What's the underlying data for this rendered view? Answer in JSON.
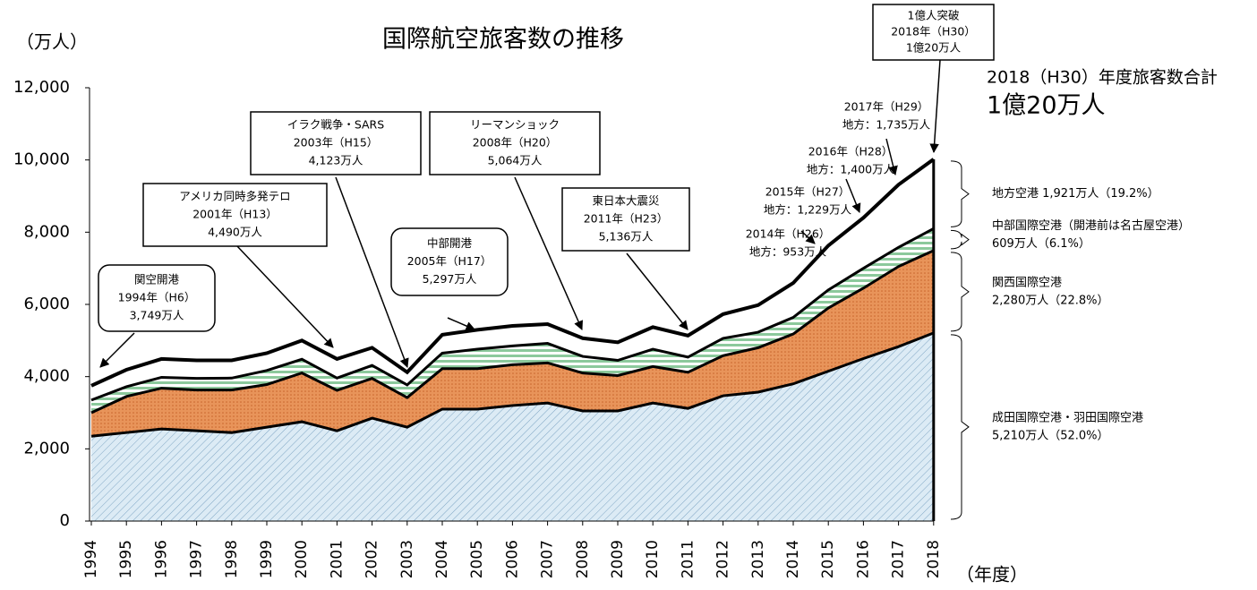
{
  "chart_data": {
    "type": "stacked_area",
    "title": "国際航空旅客数の推移",
    "y_unit": "（万人）",
    "x_label": "（年度）",
    "categories": [
      "1994",
      "1995",
      "1996",
      "1997",
      "1998",
      "1999",
      "2000",
      "2001",
      "2002",
      "2003",
      "2004",
      "2005",
      "2006",
      "2007",
      "2008",
      "2009",
      "2010",
      "2011",
      "2012",
      "2013",
      "2014",
      "2015",
      "2016",
      "2017",
      "2018"
    ],
    "series": [
      {
        "name": "成田国際空港・羽田国際空港",
        "color": "#dcebf5",
        "values": [
          2350,
          2450,
          2550,
          2500,
          2450,
          2600,
          2750,
          2500,
          2850,
          2600,
          3100,
          3100,
          3200,
          3270,
          3050,
          3050,
          3270,
          3120,
          3470,
          3570,
          3800,
          4150,
          4500,
          4830,
          5210
        ]
      },
      {
        "name": "関西国際空港",
        "color": "#e8945a",
        "values": [
          650,
          1000,
          1130,
          1130,
          1180,
          1180,
          1350,
          1120,
          1100,
          820,
          1120,
          1120,
          1130,
          1110,
          1050,
          980,
          1010,
          1000,
          1110,
          1230,
          1380,
          1750,
          1950,
          2220,
          2280
        ]
      },
      {
        "name": "中部国際空港（開港前は名古屋空港）",
        "color": "#dff0e3",
        "values": [
          350,
          270,
          300,
          320,
          330,
          390,
          380,
          340,
          360,
          350,
          430,
          540,
          520,
          540,
          460,
          420,
          480,
          420,
          480,
          430,
          460,
          500,
          550,
          530,
          609
        ]
      },
      {
        "name": "地方空港",
        "color": "#ffffff",
        "values": [
          399,
          470,
          510,
          500,
          490,
          480,
          520,
          530,
          490,
          353,
          510,
          537,
          555,
          535,
          504,
          500,
          610,
          596,
          670,
          750,
          953,
          1229,
          1400,
          1735,
          1921
        ]
      }
    ],
    "side_labels": [
      [
        "成田国際空港・羽田国際空港",
        "5,210万人（52.0%）"
      ],
      [
        "関西国際空港",
        "2,280万人（22.8%）"
      ],
      [
        "中部国際空港（開港前は名古屋空港）",
        "609万人（6.1%）"
      ],
      [
        "地方空港 1,921万人（19.2%）"
      ]
    ],
    "headline": [
      "2018（H30）年度旅客数合計",
      "1億20万人"
    ],
    "annotations": [
      {
        "lines": [
          "関空開港",
          "1994年（H6）",
          "3,749万人"
        ]
      },
      {
        "lines": [
          "アメリカ同時多発テロ",
          "2001年（H13）",
          "4,490万人"
        ]
      },
      {
        "lines": [
          "イラク戦争・SARS",
          "2003年（H15）",
          "4,123万人"
        ]
      },
      {
        "lines": [
          "中部開港",
          "2005年（H17）",
          "5,297万人"
        ]
      },
      {
        "lines": [
          "リーマンショック",
          "2008年（H20）",
          "5,064万人"
        ]
      },
      {
        "lines": [
          "東日本大震災",
          "2011年（H23）",
          "5,136万人"
        ]
      },
      {
        "lines": [
          "2014年（H26）",
          "地方：953万人"
        ]
      },
      {
        "lines": [
          "2015年（H27）",
          "地方：1,229万人"
        ]
      },
      {
        "lines": [
          "2016年（H28）",
          "地方：1,400万人"
        ]
      },
      {
        "lines": [
          "2017年（H29）",
          "地方：1,735万人"
        ]
      },
      {
        "lines": [
          "1億人突破",
          "2018年（H30）",
          "1億20万人"
        ]
      }
    ],
    "ylim": [
      0,
      12000
    ],
    "yticks": [
      0,
      {
        "value": 2000,
        "label": "2,000"
      },
      {
        "value": 4000,
        "label": "4,000"
      },
      {
        "value": 6000,
        "label": "6,000"
      },
      {
        "value": 8000,
        "label": "8,000"
      },
      {
        "value": 10000,
        "label": "10,000"
      },
      {
        "value": 12000,
        "label": "12,000"
      }
    ]
  }
}
